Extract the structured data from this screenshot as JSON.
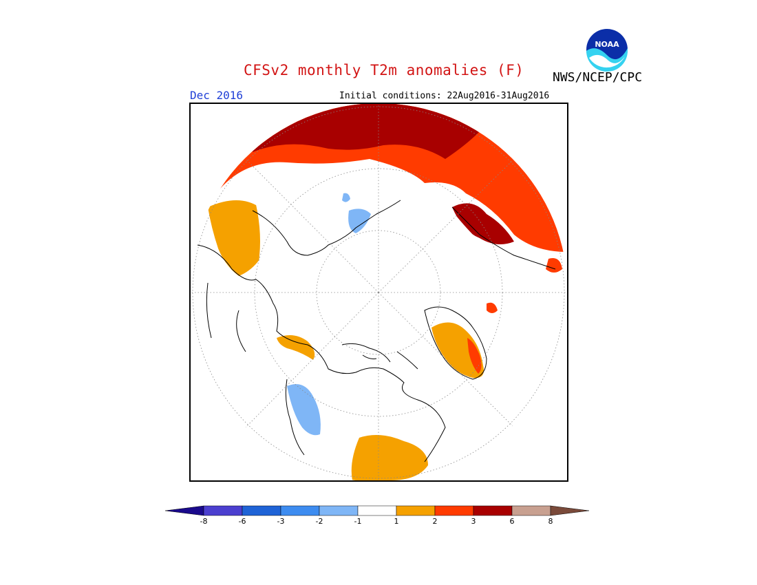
{
  "header": {
    "title": "CFSv2 monthly T2m anomalies (F)",
    "agency": "NWS/NCEP/CPC",
    "logo_text": "NOAA",
    "valid_month": "Dec 2016",
    "initial_conditions": "Initial conditions: 22Aug2016-31Aug2016"
  },
  "legend": {
    "labels": [
      "-8",
      "-6",
      "-3",
      "-2",
      "-1",
      "1",
      "2",
      "3",
      "6",
      "8"
    ],
    "colors": [
      "#1a0a8c",
      "#4b3fcf",
      "#1f63d6",
      "#3d8cf0",
      "#7fb6f6",
      "#ffffff",
      "#f5a100",
      "#ff3b00",
      "#a80000",
      "#c8a090",
      "#7a4a3a"
    ]
  },
  "colors": {
    "title": "#d21414",
    "month": "#1f3fd6",
    "warm1": "#f5a100",
    "warm2": "#ff3b00",
    "warm3": "#a80000",
    "cool1": "#7fb6f6"
  }
}
